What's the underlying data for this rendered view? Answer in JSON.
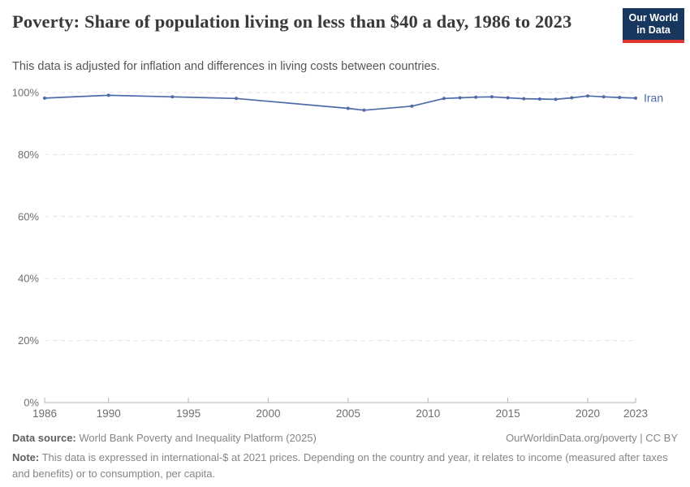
{
  "header": {
    "title": "Poverty: Share of population living on less than $40 a day, 1986 to 2023",
    "subtitle": "This data is adjusted for inflation and differences in living costs between countries."
  },
  "logo": {
    "line1": "Our World",
    "line2": "in Data",
    "bg_color": "#18375f",
    "accent_color": "#e0342f"
  },
  "chart_data": {
    "type": "line",
    "title": "Poverty: Share of population living on less than $40 a day, 1986 to 2023",
    "xlabel": "",
    "ylabel": "",
    "grid": "dashed-horizontal",
    "legend_position": "end-of-line-label",
    "x_axis": {
      "range": [
        1986,
        2023
      ],
      "ticks": [
        {
          "value": 1986,
          "label": "1986"
        },
        {
          "value": 1990,
          "label": "1990"
        },
        {
          "value": 1995,
          "label": "1995"
        },
        {
          "value": 2000,
          "label": "2000"
        },
        {
          "value": 2005,
          "label": "2005"
        },
        {
          "value": 2010,
          "label": "2010"
        },
        {
          "value": 2015,
          "label": "2015"
        },
        {
          "value": 2020,
          "label": "2020"
        },
        {
          "value": 2023,
          "label": "2023"
        }
      ]
    },
    "y_axis": {
      "range": [
        0,
        100
      ],
      "unit": "%",
      "ticks": [
        {
          "value": 0,
          "label": "0%"
        },
        {
          "value": 20,
          "label": "20%"
        },
        {
          "value": 40,
          "label": "40%"
        },
        {
          "value": 60,
          "label": "60%"
        },
        {
          "value": 80,
          "label": "80%"
        },
        {
          "value": 100,
          "label": "100%"
        }
      ]
    },
    "series": [
      {
        "name": "Iran",
        "color": "#4c6ba8",
        "points": [
          [
            1986,
            98.2
          ],
          [
            1990,
            99.1
          ],
          [
            1994,
            98.6
          ],
          [
            1998,
            98.1
          ],
          [
            2005,
            94.9
          ],
          [
            2006,
            94.3
          ],
          [
            2009,
            95.6
          ],
          [
            2011,
            98.1
          ],
          [
            2012,
            98.3
          ],
          [
            2013,
            98.5
          ],
          [
            2014,
            98.6
          ],
          [
            2015,
            98.3
          ],
          [
            2016,
            98.0
          ],
          [
            2017,
            97.9
          ],
          [
            2018,
            97.8
          ],
          [
            2019,
            98.3
          ],
          [
            2020,
            98.9
          ],
          [
            2021,
            98.6
          ],
          [
            2022,
            98.4
          ],
          [
            2023,
            98.2
          ]
        ]
      }
    ],
    "style": {
      "grid_color": "#e2e2e2",
      "axis_line_color": "#b3b3b3",
      "tick_label_color": "#6e6e6e"
    }
  },
  "footer": {
    "source_label": "Data source:",
    "source_text": "World Bank Poverty and Inequality Platform (2025)",
    "link": "OurWorldinData.org/poverty | CC BY",
    "note_label": "Note:",
    "note_text": "This data is expressed in international-$ at 2021 prices. Depending on the country and year, it relates to income (measured after taxes and benefits) or to consumption, per capita."
  }
}
